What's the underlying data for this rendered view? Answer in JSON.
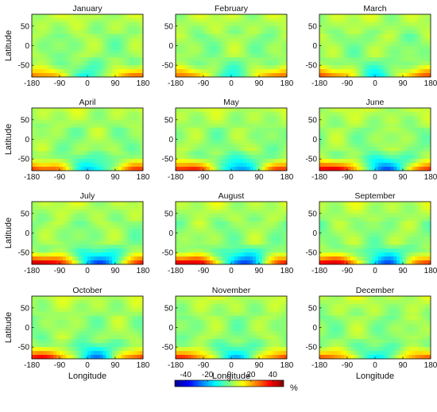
{
  "chart_data": {
    "type": "heatmap",
    "layout": "3 columns x 4 rows of small-multiple contour maps",
    "panels": [
      {
        "title": "January"
      },
      {
        "title": "February"
      },
      {
        "title": "March"
      },
      {
        "title": "April"
      },
      {
        "title": "May"
      },
      {
        "title": "June"
      },
      {
        "title": "July"
      },
      {
        "title": "August"
      },
      {
        "title": "September"
      },
      {
        "title": "October"
      },
      {
        "title": "November"
      },
      {
        "title": "December"
      }
    ],
    "xlabel": "Longitude",
    "ylabel": "Latitude",
    "xticks": [
      "-180",
      "-90",
      "0",
      "90",
      "180"
    ],
    "xtick_values": [
      -180,
      -90,
      0,
      90,
      180
    ],
    "yticks": [
      "50",
      "0",
      "-50"
    ],
    "ytick_values": [
      50,
      0,
      -50
    ],
    "xlim": [
      -180,
      180
    ],
    "ylim": [
      -80,
      80
    ],
    "colorbar": {
      "ticks": [
        "-40",
        "-20",
        "0",
        "20",
        "40"
      ],
      "tick_values": [
        -40,
        -20,
        0,
        20,
        40
      ],
      "range": [
        -50,
        50
      ],
      "unit": "%",
      "colormap": "jet"
    }
  }
}
